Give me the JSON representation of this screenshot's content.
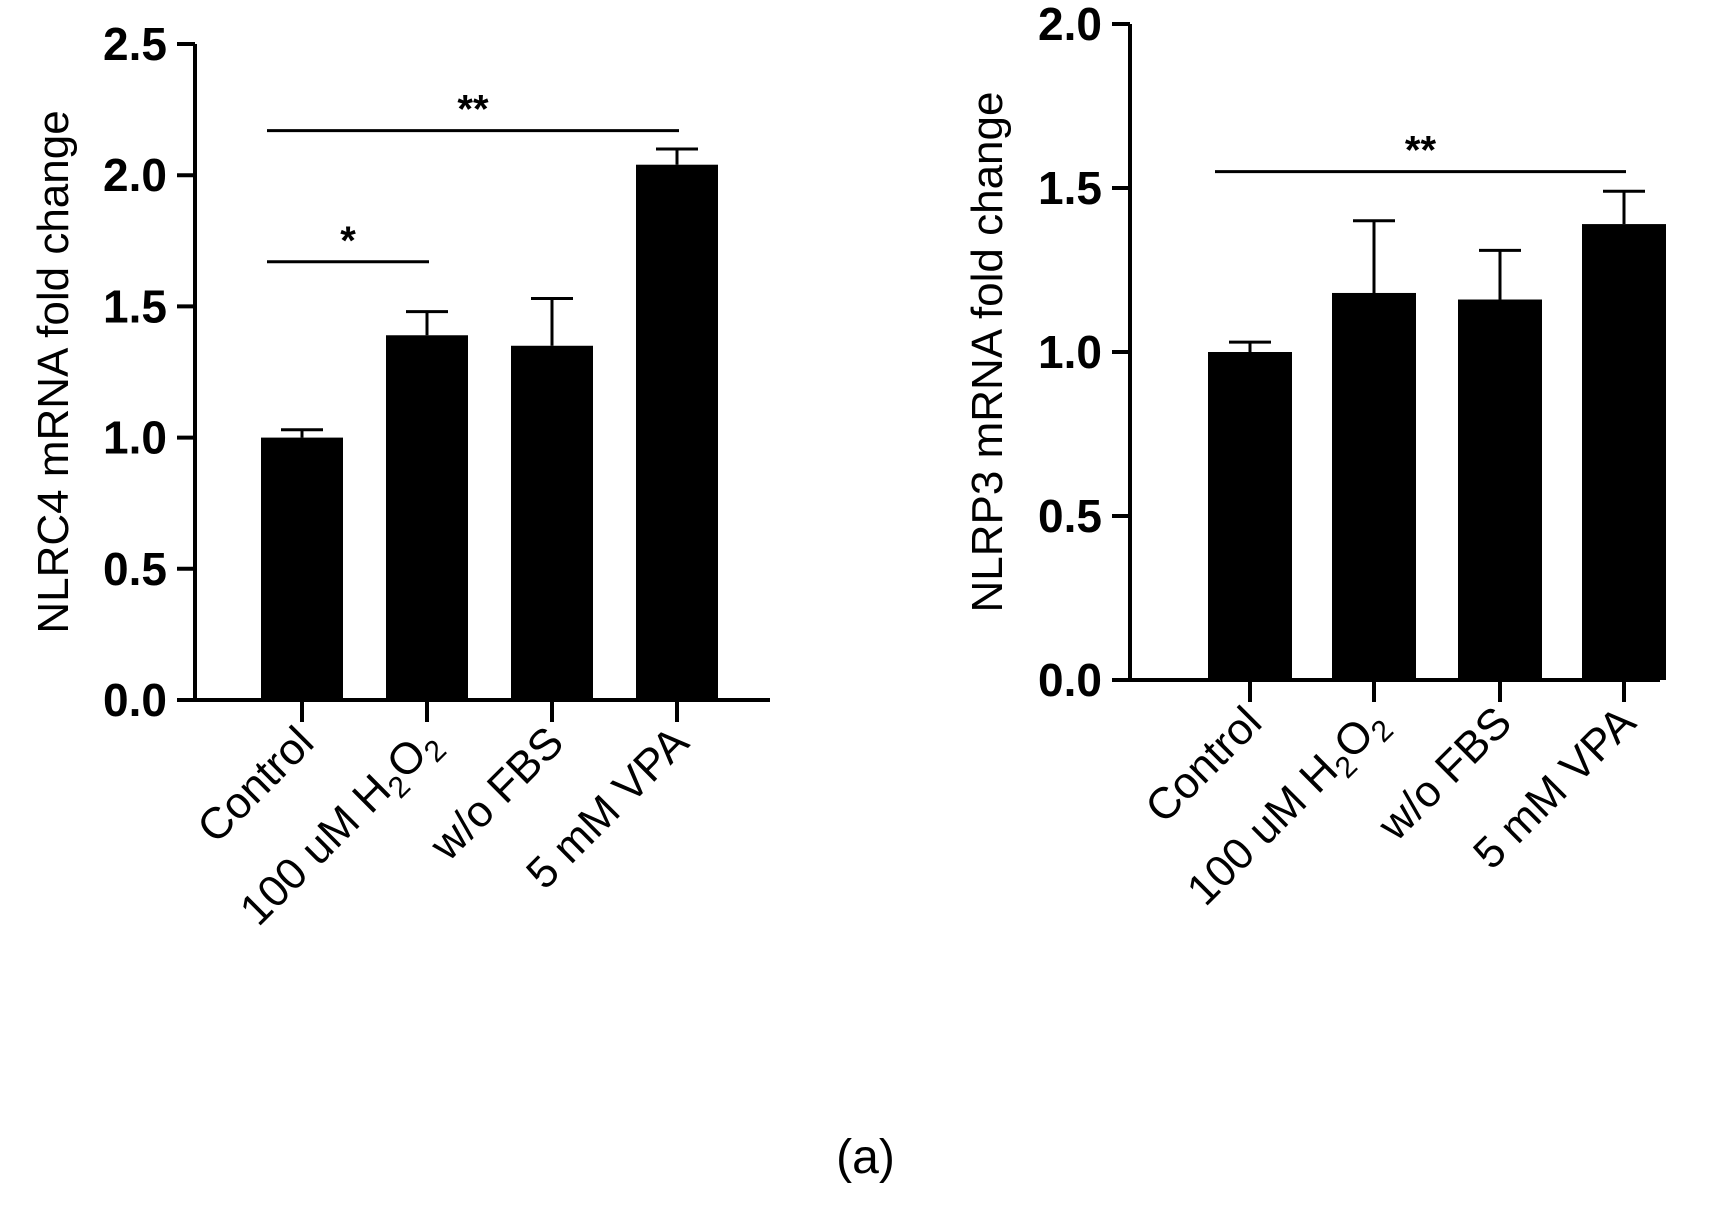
{
  "chart_data": [
    {
      "type": "bar",
      "categories": [
        "Control",
        "100 uM H2O2",
        "w/o FBS",
        "5 mM VPA"
      ],
      "category_labels": [
        {
          "pre": "Control",
          "sub": [],
          "post": ""
        },
        {
          "pre": "100 uM H",
          "sub": [
            "2",
            "2"
          ],
          "mid": "O",
          "post": ""
        },
        {
          "pre": "w/o FBS",
          "sub": [],
          "post": ""
        },
        {
          "pre": "5 mM VPA",
          "sub": [],
          "post": ""
        }
      ],
      "values": [
        1.0,
        1.39,
        1.35,
        2.04
      ],
      "errors": [
        0.03,
        0.09,
        0.18,
        0.06
      ],
      "ylabel": "NLRC4  mRNA  fold change",
      "ylim": [
        0,
        2.5
      ],
      "yticks": [
        "0.0",
        "0.5",
        "1.0",
        "1.5",
        "2.0",
        "2.5"
      ],
      "ytick_values": [
        0,
        0.5,
        1.0,
        1.5,
        2.0,
        2.5
      ],
      "significance": [
        {
          "from": 0,
          "to": 1,
          "y": 1.67,
          "label": "*"
        },
        {
          "from": 0,
          "to": 3,
          "y": 2.17,
          "label": "**"
        }
      ]
    },
    {
      "type": "bar",
      "categories": [
        "Control",
        "100 uM H2O2",
        "w/o FBS",
        "5 mM VPA"
      ],
      "category_labels": [
        {
          "pre": "Control",
          "sub": [],
          "post": ""
        },
        {
          "pre": "100 uM H",
          "sub": [
            "2",
            "2"
          ],
          "mid": "O",
          "post": ""
        },
        {
          "pre": "w/o FBS",
          "sub": [],
          "post": ""
        },
        {
          "pre": "5 mM VPA",
          "sub": [],
          "post": ""
        }
      ],
      "values": [
        1.0,
        1.18,
        1.16,
        1.39
      ],
      "errors": [
        0.03,
        0.22,
        0.15,
        0.1
      ],
      "ylabel": "NLRP3  mRNA  fold change",
      "ylim": [
        0,
        2.0
      ],
      "yticks": [
        "0.0",
        "0.5",
        "1.0",
        "1.5",
        "2.0"
      ],
      "ytick_values": [
        0,
        0.5,
        1.0,
        1.5,
        2.0
      ],
      "significance": [
        {
          "from": 0,
          "to": 3,
          "y": 1.55,
          "label": "**"
        }
      ]
    }
  ],
  "caption": "(a)",
  "colors": {
    "bar": "#000000",
    "axis": "#000000",
    "background": "#ffffff"
  }
}
